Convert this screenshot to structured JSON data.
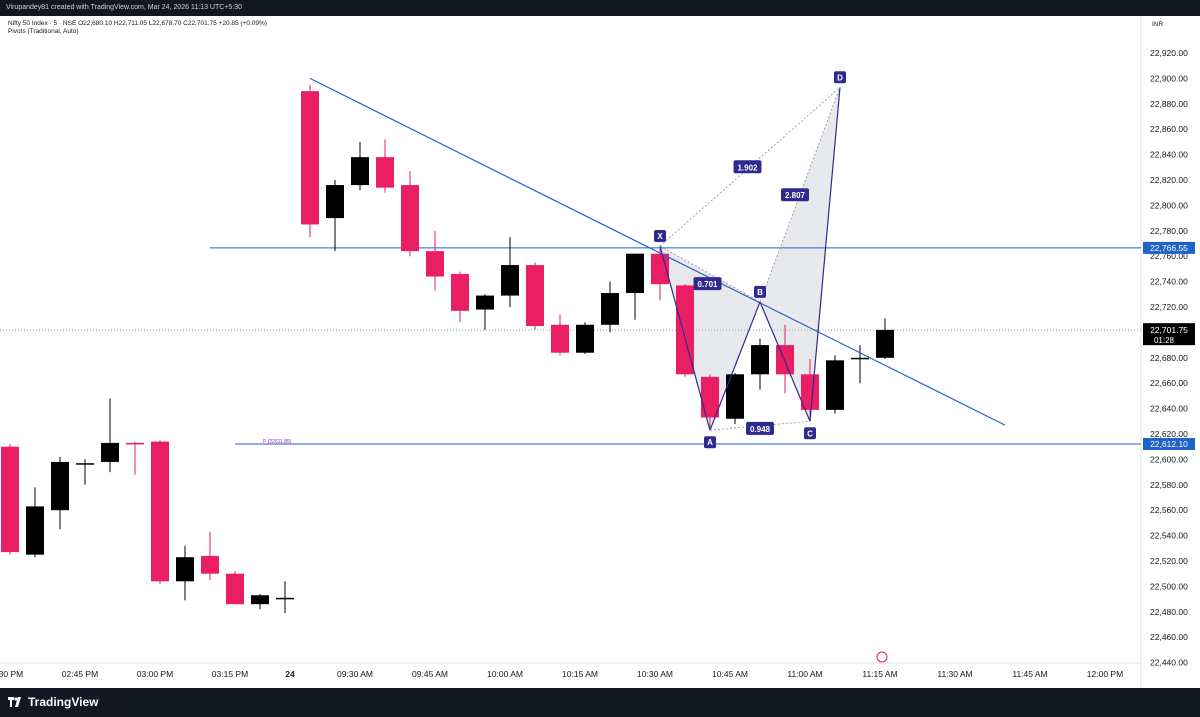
{
  "header": {
    "credit": "Virupandey81 created with TradingView.com, Mar 24, 2026 11:13 UTC+5:30"
  },
  "legend": {
    "symbol_line": "Nifty 50 Index · 5 · NSE  O22,680.10  H22,711.05  L22,678.70  C22,701.75  +20.85 (+0.09%)",
    "indicator_line": "Pivots (Traditional, Auto)"
  },
  "currency": "INR",
  "footer": {
    "brand": "TradingView"
  },
  "colors": {
    "up": "#000000",
    "down": "#e91e63",
    "trendline": "#1e63c9",
    "pattern_label_bg": "#2f2a8f",
    "price_tag_bg": "#1e63c9",
    "current_price_bg": "#000000",
    "pattern_fill": "#d9dadf"
  },
  "chart_data": {
    "type": "candlestick",
    "title": "",
    "xlabel": "",
    "ylabel": "",
    "ylim": [
      22430,
      22945
    ],
    "y_ticks": [
      22440,
      22460,
      22480,
      22500,
      22520,
      22540,
      22560,
      22580,
      22600,
      22620,
      22640,
      22660,
      22680,
      22700,
      22720,
      22740,
      22760,
      22780,
      22800,
      22820,
      22840,
      22860,
      22880,
      22900,
      22920
    ],
    "x_tick_labels": [
      {
        "label": "02:30 PM",
        "i": -0.2
      },
      {
        "label": "02:45 PM",
        "i": 2.8
      },
      {
        "label": "03:00 PM",
        "i": 5.8
      },
      {
        "label": "03:15 PM",
        "i": 8.8
      },
      {
        "label": "24",
        "i": 11.2
      },
      {
        "label": "09:30 AM",
        "i": 13.8
      },
      {
        "label": "09:45 AM",
        "i": 16.8
      },
      {
        "label": "10:00 AM",
        "i": 19.8
      },
      {
        "label": "10:15 AM",
        "i": 22.8
      },
      {
        "label": "10:30 AM",
        "i": 25.8
      },
      {
        "label": "10:45 AM",
        "i": 28.8
      },
      {
        "label": "11:00 AM",
        "i": 31.8
      },
      {
        "label": "11:15 AM",
        "i": 34.8
      },
      {
        "label": "11:30 AM",
        "i": 37.8
      },
      {
        "label": "11:45 AM",
        "i": 40.8
      },
      {
        "label": "12:00 PM",
        "i": 43.8
      }
    ],
    "candles": [
      {
        "i": 0,
        "o": 22610,
        "h": 22612,
        "l": 22525,
        "c": 22527
      },
      {
        "i": 1,
        "o": 22525,
        "h": 22578,
        "l": 22523,
        "c": 22563
      },
      {
        "i": 2,
        "o": 22560,
        "h": 22602,
        "l": 22545,
        "c": 22598
      },
      {
        "i": 3,
        "o": 22596,
        "h": 22600,
        "l": 22580,
        "c": 22597
      },
      {
        "i": 4,
        "o": 22598,
        "h": 22648,
        "l": 22590,
        "c": 22613
      },
      {
        "i": 5,
        "o": 22613,
        "h": 22614,
        "l": 22588,
        "c": 22612
      },
      {
        "i": 6,
        "o": 22614,
        "h": 22615,
        "l": 22502,
        "c": 22504
      },
      {
        "i": 7,
        "o": 22504,
        "h": 22532,
        "l": 22489,
        "c": 22523
      },
      {
        "i": 8,
        "o": 22524,
        "h": 22543,
        "l": 22505,
        "c": 22510
      },
      {
        "i": 9,
        "o": 22510,
        "h": 22512,
        "l": 22486,
        "c": 22486
      },
      {
        "i": 10,
        "o": 22486,
        "h": 22494,
        "l": 22482,
        "c": 22493
      },
      {
        "i": 11,
        "o": 22491,
        "h": 22504,
        "l": 22479,
        "c": 22491
      },
      {
        "i": 12,
        "o": 22890,
        "h": 22895,
        "l": 22775,
        "c": 22785
      },
      {
        "i": 13,
        "o": 22790,
        "h": 22820,
        "l": 22764,
        "c": 22816
      },
      {
        "i": 14,
        "o": 22816,
        "h": 22850,
        "l": 22812,
        "c": 22838
      },
      {
        "i": 15,
        "o": 22838,
        "h": 22852,
        "l": 22810,
        "c": 22814
      },
      {
        "i": 16,
        "o": 22816,
        "h": 22827,
        "l": 22760,
        "c": 22764
      },
      {
        "i": 17,
        "o": 22764,
        "h": 22780,
        "l": 22733,
        "c": 22744
      },
      {
        "i": 18,
        "o": 22746,
        "h": 22748,
        "l": 22708,
        "c": 22717
      },
      {
        "i": 19,
        "o": 22718,
        "h": 22730,
        "l": 22702,
        "c": 22729
      },
      {
        "i": 20,
        "o": 22729,
        "h": 22775,
        "l": 22720,
        "c": 22753
      },
      {
        "i": 21,
        "o": 22753,
        "h": 22755,
        "l": 22702,
        "c": 22705
      },
      {
        "i": 22,
        "o": 22706,
        "h": 22714,
        "l": 22682,
        "c": 22684
      },
      {
        "i": 23,
        "o": 22684,
        "h": 22708,
        "l": 22683,
        "c": 22706
      },
      {
        "i": 24,
        "o": 22706,
        "h": 22740,
        "l": 22700,
        "c": 22731
      },
      {
        "i": 25,
        "o": 22731,
        "h": 22758,
        "l": 22710,
        "c": 22762
      },
      {
        "i": 26,
        "o": 22762,
        "h": 22766,
        "l": 22725,
        "c": 22738
      },
      {
        "i": 27,
        "o": 22737,
        "h": 22738,
        "l": 22665,
        "c": 22667
      },
      {
        "i": 28,
        "o": 22665,
        "h": 22667,
        "l": 22625,
        "c": 22633
      },
      {
        "i": 29,
        "o": 22632,
        "h": 22668,
        "l": 22628,
        "c": 22667
      },
      {
        "i": 30,
        "o": 22667,
        "h": 22695,
        "l": 22655,
        "c": 22690
      },
      {
        "i": 31,
        "o": 22690,
        "h": 22706,
        "l": 22652,
        "c": 22667
      },
      {
        "i": 32,
        "o": 22667,
        "h": 22679,
        "l": 22630,
        "c": 22639
      },
      {
        "i": 33,
        "o": 22639,
        "h": 22682,
        "l": 22636,
        "c": 22678
      },
      {
        "i": 34,
        "o": 22679,
        "h": 22690,
        "l": 22660,
        "c": 22680
      },
      {
        "i": 35,
        "o": 22680,
        "h": 22711,
        "l": 22679,
        "c": 22702
      }
    ],
    "horizontal_lines": [
      {
        "price": 22766.55,
        "i_start": 8,
        "label": "22,766.55"
      },
      {
        "price": 22612.1,
        "i_start": 9,
        "label": "22,612.10",
        "note": "P (22611.85)"
      }
    ],
    "current_price": {
      "price": 22701.75,
      "label": "22,701.75",
      "countdown": "01:28"
    },
    "trendline": {
      "i1": 12,
      "p1": 22900,
      "i2": 39.8,
      "p2": 22627
    },
    "harmonic_pattern": {
      "points": [
        {
          "name": "X",
          "i": 26,
          "p": 22768
        },
        {
          "name": "A",
          "i": 28,
          "p": 22623
        },
        {
          "name": "B",
          "i": 30,
          "p": 22724
        },
        {
          "name": "C",
          "i": 32,
          "p": 22630
        },
        {
          "name": "D",
          "i": 33.2,
          "p": 22893
        }
      ],
      "ratios": [
        {
          "label": "0.701",
          "i": 27.9,
          "p": 22738
        },
        {
          "label": "1.902",
          "i": 29.5,
          "p": 22830
        },
        {
          "label": "2.807",
          "i": 31.4,
          "p": 22808
        },
        {
          "label": "0.948",
          "i": 30,
          "p": 22624
        }
      ]
    }
  }
}
